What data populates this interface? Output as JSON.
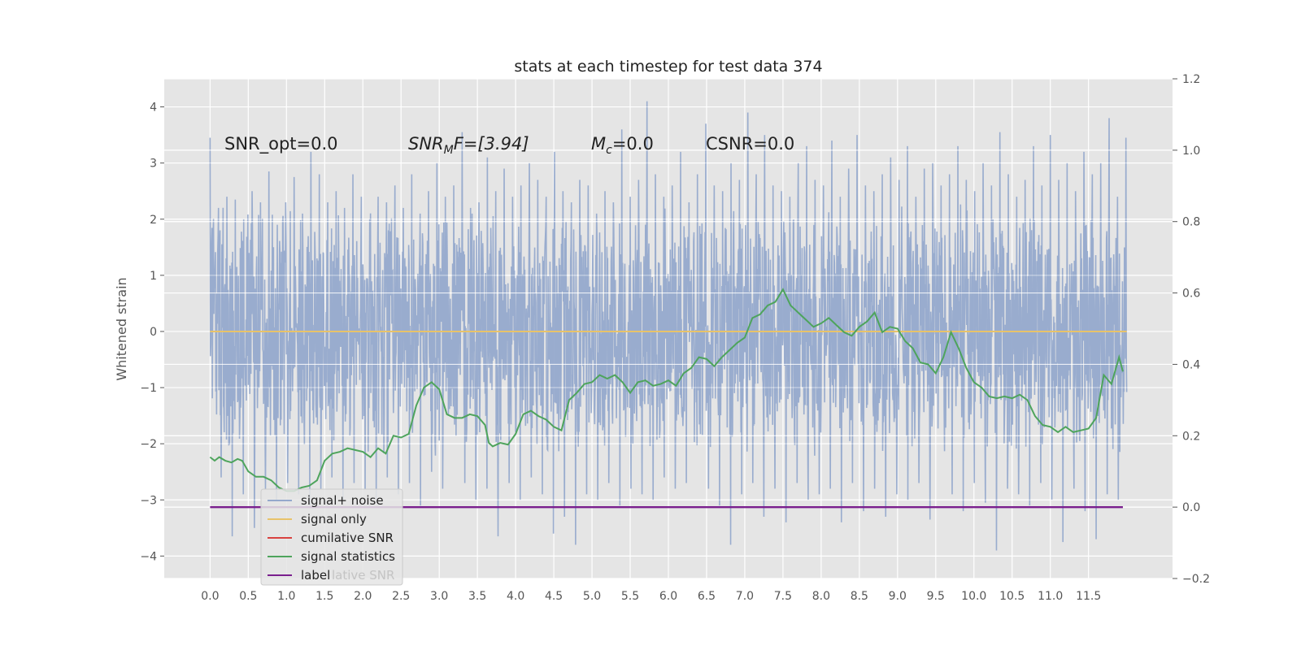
{
  "chart_data": {
    "type": "line",
    "title": "stats at each timestep for test data 374",
    "ylabel": "Whitened strain",
    "xlabel": "",
    "xlim": [
      -0.6,
      12.6
    ],
    "ylim": [
      -4.4,
      4.5
    ],
    "y2lim": [
      -0.2,
      1.2
    ],
    "grid": true,
    "legend_placement": "lower-left",
    "x_ticks": [
      "0.0",
      "0.5",
      "1.0",
      "1.5",
      "2.0",
      "2.5",
      "3.0",
      "3.5",
      "4.0",
      "4.5",
      "5.0",
      "5.5",
      "6.0",
      "6.5",
      "7.0",
      "7.5",
      "8.0",
      "8.5",
      "9.0",
      "9.5",
      "10.0",
      "10.5",
      "11.0",
      "11.5"
    ],
    "y_ticks": [
      "4",
      "3",
      "2",
      "1",
      "0",
      "−1",
      "−2",
      "−3",
      "−4"
    ],
    "y2_ticks": [
      "1.2",
      "1.0",
      "0.8",
      "0.6",
      "0.4",
      "0.2",
      "0.0",
      "−0.2"
    ],
    "annotations": {
      "snr_opt": "SNR_opt=0.0",
      "snr_mf_base": "SNR",
      "snr_mf_sub": "M",
      "snr_mf_rest": "F=[3.94]",
      "mc_base": "M",
      "mc_sub": "c",
      "mc_rest": "=0.0",
      "csnr": "CSNR=0.0"
    },
    "legend": {
      "noise": "signal+ noise",
      "signal": "signal only",
      "csnr": "cumilative SNR",
      "stats": "signal statistics",
      "label": "label",
      "ghost": "lative SNR"
    },
    "series": [
      {
        "name": "signal+ noise",
        "color": "#95a9cc",
        "x_start": 0.0,
        "x_end": 12.0,
        "peaks_y": [
          3.45,
          2.2,
          2.4,
          2.35,
          2.0,
          2.5,
          2.3,
          2.85,
          1.9,
          2.3,
          2.75,
          2.1,
          3.2,
          2.8,
          2.3,
          2.5,
          2.2,
          2.8,
          2.4,
          2.0,
          2.4,
          2.3,
          2.6,
          2.2,
          2.8,
          2.1,
          2.5,
          3.0,
          2.4,
          2.6,
          3.55,
          2.2,
          2.3,
          3.1,
          2.5,
          2.9,
          2.4,
          2.6,
          3.0,
          2.7,
          2.4,
          3.2,
          2.5,
          2.3,
          2.7,
          2.6,
          2.1,
          2.5,
          2.3,
          3.6,
          2.4,
          2.7,
          4.1,
          2.8,
          2.4,
          2.6,
          3.2,
          2.3,
          2.8,
          3.7,
          2.6,
          2.5,
          3.0,
          2.7,
          3.9,
          2.8,
          3.5,
          2.6,
          2.5,
          2.4,
          3.0,
          3.3,
          2.7,
          2.6,
          3.4,
          2.4,
          2.9,
          3.5,
          2.6,
          2.5,
          2.8,
          3.1,
          2.7,
          3.3,
          2.4,
          2.9,
          3.0,
          2.6,
          2.8,
          3.3,
          2.7,
          2.5,
          3.0,
          2.6,
          3.55,
          2.8,
          2.4,
          2.7,
          3.3,
          2.6,
          3.5,
          2.7,
          3.0,
          2.5,
          3.2,
          2.8,
          3.0,
          3.8,
          2.4
        ],
        "troughs_y": [
          -3.0,
          -2.6,
          -3.65,
          -2.9,
          -3.5,
          -2.8,
          -3.0,
          -2.7,
          -2.9,
          -3.1,
          -2.8,
          -2.6,
          -3.0,
          -2.7,
          -2.8,
          -3.0,
          -2.6,
          -2.9,
          -2.7,
          -3.1,
          -2.5,
          -2.8,
          -2.9,
          -2.7,
          -3.0,
          -2.8,
          -3.65,
          -2.7,
          -3.0,
          -2.6,
          -2.9,
          -3.6,
          -3.3,
          -3.8,
          -2.9,
          -3.0,
          -2.7,
          -3.1,
          -2.8,
          -2.9,
          -3.0,
          -2.6,
          -2.8,
          -2.7,
          -3.0,
          -2.8,
          -3.1,
          -3.8,
          -2.9,
          -2.7,
          -3.3,
          -2.8,
          -3.4,
          -2.7,
          -3.0,
          -2.9,
          -2.8,
          -3.4,
          -2.7,
          -3.2,
          -2.8,
          -3.3,
          -2.9,
          -3.0,
          -2.7,
          -3.35,
          -2.8,
          -2.9,
          -3.2,
          -2.7,
          -3.05,
          -3.9,
          -2.8,
          -2.9,
          -3.1,
          -2.7,
          -3.0,
          -3.75,
          -2.8,
          -3.2,
          -3.7,
          -2.9
        ]
      },
      {
        "name": "signal only",
        "color": "#e8c36a",
        "x": [
          0.0,
          12.0
        ],
        "values": [
          0.0,
          0.0
        ]
      },
      {
        "name": "cumilative SNR",
        "color": "#d9423f",
        "x": [],
        "values": []
      },
      {
        "name": "signal statistics",
        "color": "#4ea45c",
        "axis": "right",
        "x": [
          0.0,
          0.06,
          0.12,
          0.2,
          0.28,
          0.36,
          0.42,
          0.5,
          0.6,
          0.7,
          0.8,
          0.9,
          1.0,
          1.1,
          1.2,
          1.3,
          1.4,
          1.5,
          1.6,
          1.7,
          1.8,
          1.9,
          2.0,
          2.1,
          2.2,
          2.3,
          2.4,
          2.5,
          2.6,
          2.7,
          2.75,
          2.8,
          2.9,
          3.0,
          3.1,
          3.2,
          3.3,
          3.4,
          3.5,
          3.6,
          3.65,
          3.7,
          3.8,
          3.9,
          4.0,
          4.1,
          4.2,
          4.3,
          4.4,
          4.5,
          4.6,
          4.7,
          4.8,
          4.9,
          5.0,
          5.1,
          5.2,
          5.3,
          5.4,
          5.5,
          5.6,
          5.7,
          5.8,
          5.9,
          6.0,
          6.1,
          6.2,
          6.3,
          6.4,
          6.5,
          6.6,
          6.7,
          6.8,
          6.9,
          7.0,
          7.1,
          7.2,
          7.3,
          7.4,
          7.5,
          7.6,
          7.7,
          7.8,
          7.9,
          8.0,
          8.1,
          8.2,
          8.3,
          8.4,
          8.5,
          8.6,
          8.7,
          8.8,
          8.9,
          9.0,
          9.1,
          9.2,
          9.3,
          9.4,
          9.5,
          9.6,
          9.7,
          9.8,
          9.9,
          10.0,
          10.1,
          10.2,
          10.3,
          10.4,
          10.5,
          10.6,
          10.7,
          10.8,
          10.9,
          11.0,
          11.1,
          11.2,
          11.3,
          11.4,
          11.5,
          11.6,
          11.7,
          11.8,
          11.9,
          11.95
        ],
        "values": [
          0.14,
          0.13,
          0.14,
          0.13,
          0.125,
          0.135,
          0.13,
          0.1,
          0.085,
          0.085,
          0.075,
          0.055,
          0.045,
          0.045,
          0.055,
          0.06,
          0.075,
          0.13,
          0.15,
          0.155,
          0.165,
          0.16,
          0.155,
          0.14,
          0.165,
          0.15,
          0.2,
          0.195,
          0.205,
          0.285,
          0.31,
          0.335,
          0.35,
          0.33,
          0.26,
          0.25,
          0.25,
          0.26,
          0.255,
          0.23,
          0.18,
          0.17,
          0.18,
          0.175,
          0.205,
          0.26,
          0.27,
          0.255,
          0.245,
          0.225,
          0.215,
          0.3,
          0.32,
          0.345,
          0.35,
          0.37,
          0.36,
          0.37,
          0.35,
          0.32,
          0.35,
          0.355,
          0.34,
          0.345,
          0.355,
          0.34,
          0.375,
          0.39,
          0.42,
          0.415,
          0.395,
          0.42,
          0.44,
          0.46,
          0.475,
          0.53,
          0.54,
          0.565,
          0.575,
          0.61,
          0.565,
          0.545,
          0.525,
          0.505,
          0.515,
          0.53,
          0.51,
          0.49,
          0.48,
          0.505,
          0.52,
          0.545,
          0.49,
          0.505,
          0.5,
          0.465,
          0.445,
          0.405,
          0.4,
          0.375,
          0.42,
          0.49,
          0.445,
          0.39,
          0.35,
          0.335,
          0.31,
          0.305,
          0.31,
          0.305,
          0.315,
          0.3,
          0.255,
          0.23,
          0.225,
          0.21,
          0.225,
          0.21,
          0.215,
          0.22,
          0.25,
          0.37,
          0.345,
          0.42,
          0.38
        ]
      },
      {
        "name": "label",
        "color": "#7a1f8e",
        "axis": "right",
        "x": [
          0.0,
          11.95
        ],
        "values": [
          0.0,
          0.0
        ]
      }
    ]
  }
}
